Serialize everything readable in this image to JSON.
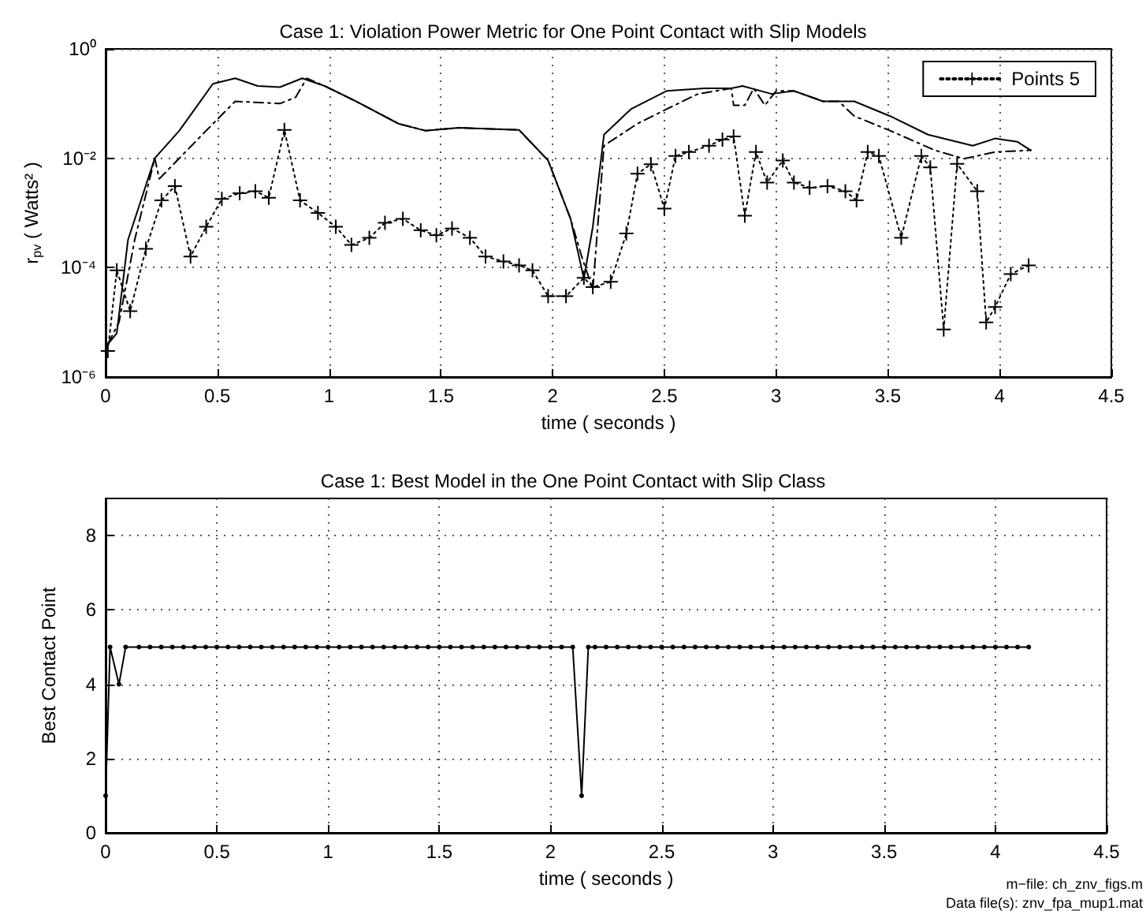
{
  "chart_data": [
    {
      "type": "line",
      "title": "Case 1: Violation Power Metric for One Point Contact with Slip Models",
      "xlabel": "time ( seconds )",
      "ylabel": "r$_{pv}$ ( Watts² )",
      "log": "y",
      "grid": true,
      "legend": "top right",
      "xlim": [
        0,
        4.5
      ],
      "xticks": [
        0,
        0.5,
        1,
        1.5,
        2,
        2.5,
        3,
        3.5,
        4,
        4.5
      ],
      "ylim": [
        1e-06,
        1
      ],
      "yticks": [
        {
          "value": 1e-06,
          "label": "10⁻⁶"
        },
        {
          "value": 0.0001,
          "label": "10⁻⁴"
        },
        {
          "value": 0.01,
          "label": "10⁻²"
        },
        {
          "value": 1,
          "label": "10⁰"
        }
      ],
      "series": [
        {
          "color": "#000000",
          "line_style": "solid",
          "marker": "none",
          "x": [
            0.01,
            0.05,
            0.1,
            0.22,
            0.33,
            0.48,
            0.58,
            0.68,
            0.78,
            0.88,
            0.98,
            1.12,
            1.31,
            1.43,
            1.58,
            1.85,
            1.98,
            2.08,
            2.14,
            2.18,
            2.23,
            2.35,
            2.51,
            2.68,
            2.8,
            2.85,
            2.98,
            3.08,
            3.21,
            3.35,
            3.51,
            3.68,
            3.88,
            3.98,
            4.08,
            4.14
          ],
          "values": [
            4e-06,
            6.3e-06,
            0.00032,
            0.01,
            0.032,
            0.23,
            0.29,
            0.21,
            0.2,
            0.29,
            0.21,
            0.11,
            0.043,
            0.032,
            0.036,
            0.033,
            0.0091,
            0.00079,
            6.3e-05,
            0.00056,
            0.027,
            0.079,
            0.17,
            0.19,
            0.19,
            0.21,
            0.15,
            0.17,
            0.11,
            0.11,
            0.059,
            0.027,
            0.017,
            0.023,
            0.02,
            0.014
          ]
        },
        {
          "color": "#000000",
          "line_style": "dashdot",
          "marker": "none",
          "x": [
            0.01,
            0.06,
            0.13,
            0.22,
            0.24,
            0.32,
            0.45,
            0.58,
            0.78,
            0.85,
            0.9,
            0.98,
            1.12,
            1.31,
            1.43,
            1.58,
            1.85,
            1.98,
            2.08,
            2.13,
            2.18,
            2.23,
            2.38,
            2.51,
            2.65,
            2.8,
            2.81,
            2.86,
            2.9,
            2.95,
            3.0,
            3.08,
            3.21,
            3.28,
            3.35,
            3.51,
            3.71,
            3.84,
            3.98,
            4.14
          ],
          "values": [
            4e-06,
            1e-05,
            0.00032,
            0.01,
            0.0042,
            0.0091,
            0.032,
            0.11,
            0.1,
            0.13,
            0.29,
            0.21,
            0.11,
            0.043,
            0.032,
            0.036,
            0.033,
            0.0091,
            0.00079,
            0.00016,
            4e-05,
            0.017,
            0.043,
            0.079,
            0.15,
            0.19,
            0.093,
            0.093,
            0.19,
            0.093,
            0.17,
            0.17,
            0.11,
            0.11,
            0.059,
            0.032,
            0.014,
            0.0098,
            0.013,
            0.014
          ]
        },
        {
          "name": "Points 5",
          "color": "#000000",
          "line_style": "dotted",
          "marker": "cross",
          "x": [
            0.01,
            0.05,
            0.11,
            0.18,
            0.25,
            0.31,
            0.38,
            0.45,
            0.52,
            0.6,
            0.67,
            0.73,
            0.8,
            0.87,
            0.95,
            1.03,
            1.1,
            1.18,
            1.25,
            1.33,
            1.41,
            1.48,
            1.55,
            1.63,
            1.7,
            1.78,
            1.85,
            1.91,
            1.98,
            2.06,
            2.14,
            2.18,
            2.26,
            2.33,
            2.38,
            2.44,
            2.5,
            2.55,
            2.61,
            2.7,
            2.76,
            2.81,
            2.86,
            2.91,
            2.96,
            3.03,
            3.08,
            3.15,
            3.23,
            3.31,
            3.36,
            3.41,
            3.46,
            3.56,
            3.65,
            3.69,
            3.75,
            3.81,
            3.9,
            3.94,
            3.98,
            4.05,
            4.13
          ],
          "values": [
            3e-06,
            8.9e-05,
            1.6e-05,
            0.00022,
            0.0017,
            0.0031,
            0.00016,
            0.00056,
            0.0018,
            0.0023,
            0.0025,
            0.0019,
            0.033,
            0.0017,
            0.001,
            0.00056,
            0.00026,
            0.00035,
            0.00066,
            0.00078,
            0.00048,
            0.00039,
            0.00052,
            0.00035,
            0.00016,
            0.00013,
            0.00011,
            8.9e-05,
            3e-05,
            3e-05,
            6.5e-05,
            4.4e-05,
            5.5e-05,
            0.00042,
            0.0052,
            0.0078,
            0.0012,
            0.011,
            0.013,
            0.017,
            0.022,
            0.025,
            0.00089,
            0.013,
            0.0036,
            0.0091,
            0.0036,
            0.0029,
            0.0031,
            0.0025,
            0.0017,
            0.013,
            0.011,
            0.00035,
            0.011,
            0.0068,
            7.4e-06,
            0.0079,
            0.0025,
            1e-05,
            1.9e-05,
            7.6e-05,
            0.00011
          ]
        }
      ]
    },
    {
      "type": "line",
      "title": "Case 1: Best Model in the One Point Contact with Slip Class",
      "xlabel": "time ( seconds )",
      "ylabel": "Best Contact Point",
      "grid": true,
      "marker": "circle",
      "line_style": "solid",
      "xlim": [
        0,
        4.5
      ],
      "xticks": [
        0,
        0.5,
        1,
        1.5,
        2,
        2.5,
        3,
        3.5,
        4,
        4.5
      ],
      "ylim": [
        0,
        9
      ],
      "yticks": [
        0,
        2,
        4,
        6,
        8
      ],
      "annotations": [
        "m−file: ch_znv_figs.m",
        "Data file(s): znv_fpa_mup1.mat"
      ],
      "series": [
        {
          "color": "#000000",
          "x": [
            0,
            0.02,
            0.06,
            0.09,
            0.15,
            0.2,
            0.25,
            0.3,
            0.35,
            0.4,
            0.45,
            0.5,
            0.55,
            0.6,
            0.65,
            0.7,
            0.75,
            0.8,
            0.85,
            0.9,
            0.95,
            1.0,
            1.05,
            1.1,
            1.15,
            1.2,
            1.25,
            1.3,
            1.35,
            1.4,
            1.45,
            1.5,
            1.55,
            1.6,
            1.65,
            1.7,
            1.75,
            1.8,
            1.85,
            1.9,
            1.95,
            2.0,
            2.05,
            2.1,
            2.14,
            2.17,
            2.2,
            2.25,
            2.3,
            2.35,
            2.4,
            2.45,
            2.5,
            2.55,
            2.6,
            2.65,
            2.7,
            2.75,
            2.8,
            2.85,
            2.9,
            2.95,
            3.0,
            3.05,
            3.1,
            3.15,
            3.2,
            3.25,
            3.3,
            3.35,
            3.4,
            3.45,
            3.5,
            3.55,
            3.6,
            3.65,
            3.7,
            3.75,
            3.8,
            3.85,
            3.9,
            3.95,
            4.0,
            4.05,
            4.1,
            4.15
          ],
          "values": [
            1,
            5,
            4,
            5,
            5,
            5,
            5,
            5,
            5,
            5,
            5,
            5,
            5,
            5,
            5,
            5,
            5,
            5,
            5,
            5,
            5,
            5,
            5,
            5,
            5,
            5,
            5,
            5,
            5,
            5,
            5,
            5,
            5,
            5,
            5,
            5,
            5,
            5,
            5,
            5,
            5,
            5,
            5,
            5,
            1,
            5,
            5,
            5,
            5,
            5,
            5,
            5,
            5,
            5,
            5,
            5,
            5,
            5,
            5,
            5,
            5,
            5,
            5,
            5,
            5,
            5,
            5,
            5,
            5,
            5,
            5,
            5,
            5,
            5,
            5,
            5,
            5,
            5,
            5,
            5,
            5,
            5,
            5,
            5,
            5,
            5
          ]
        }
      ]
    }
  ]
}
